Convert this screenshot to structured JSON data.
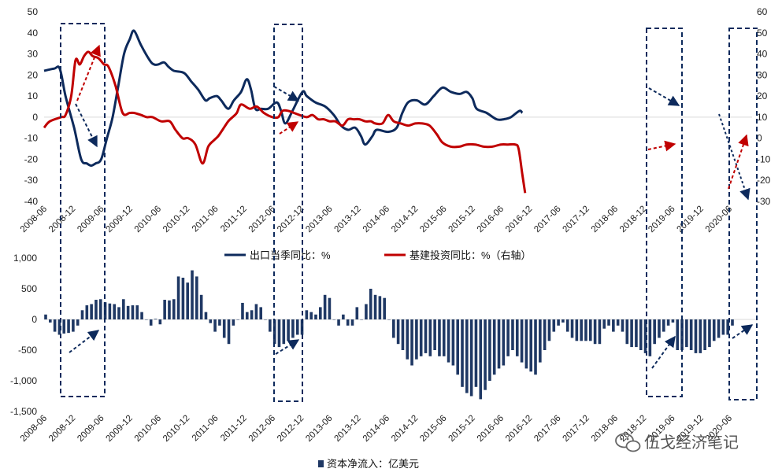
{
  "chart_data": [
    {
      "type": "line",
      "x_labels": [
        "2008-06",
        "2008-12",
        "2009-06",
        "2009-12",
        "2010-06",
        "2010-12",
        "2011-06",
        "2011-12",
        "2012-06",
        "2012-12",
        "2013-06",
        "2013-12",
        "2014-06",
        "2014-12",
        "2015-06",
        "2015-12",
        "2016-06",
        "2016-12",
        "2017-06",
        "2017-12",
        "2018-06",
        "2018-12",
        "2019-06",
        "2019-12",
        "2020-06"
      ],
      "y_left_ticks": [
        "50",
        "40",
        "30",
        "20",
        "10",
        "0",
        "-10",
        "-20",
        "-30",
        "-40"
      ],
      "y_right_ticks": [
        "60",
        "50",
        "40",
        "30",
        "20",
        "10",
        "0",
        "-10",
        "-20",
        "-30"
      ],
      "ylim_left": [
        -40,
        50
      ],
      "ylim_right": [
        -30,
        60
      ],
      "grid": false,
      "legend_position": "bottom",
      "series": [
        {
          "name": "出口当季同比：%",
          "axis": "left",
          "color": "#0d2a5c",
          "points": [
            [
              0.0,
              22
            ],
            [
              0.35,
              23
            ],
            [
              0.55,
              23
            ],
            [
              0.75,
              10
            ],
            [
              1.05,
              -5
            ],
            [
              1.3,
              -20
            ],
            [
              1.5,
              -22
            ],
            [
              1.65,
              -23
            ],
            [
              1.8,
              -22
            ],
            [
              2.0,
              -20
            ],
            [
              2.2,
              -10
            ],
            [
              2.4,
              0
            ],
            [
              2.6,
              15
            ],
            [
              2.8,
              30
            ],
            [
              3.0,
              37
            ],
            [
              3.15,
              41
            ],
            [
              3.4,
              34
            ],
            [
              3.7,
              27
            ],
            [
              3.85,
              25
            ],
            [
              4.0,
              25
            ],
            [
              4.2,
              26
            ],
            [
              4.35,
              24
            ],
            [
              4.55,
              22
            ],
            [
              4.9,
              21
            ],
            [
              5.15,
              17
            ],
            [
              5.4,
              13
            ],
            [
              5.65,
              8
            ],
            [
              5.8,
              9
            ],
            [
              6.05,
              10
            ],
            [
              6.2,
              8
            ],
            [
              6.45,
              4
            ],
            [
              6.65,
              8
            ],
            [
              6.9,
              12
            ],
            [
              7.1,
              18
            ],
            [
              7.25,
              13
            ],
            [
              7.4,
              4
            ],
            [
              7.6,
              4
            ],
            [
              7.85,
              4
            ],
            [
              8.15,
              7
            ],
            [
              8.3,
              3
            ],
            [
              8.45,
              -3
            ],
            [
              8.7,
              3
            ],
            [
              9.05,
              12
            ],
            [
              9.2,
              10
            ],
            [
              9.5,
              7
            ],
            [
              9.85,
              5
            ],
            [
              10.15,
              1
            ],
            [
              10.4,
              -4
            ],
            [
              10.65,
              -6
            ],
            [
              10.9,
              -5
            ],
            [
              11.1,
              -9
            ],
            [
              11.25,
              -13
            ],
            [
              11.5,
              -9
            ],
            [
              11.65,
              -6
            ],
            [
              12.05,
              -7
            ],
            [
              12.35,
              -5
            ],
            [
              12.55,
              2
            ],
            [
              12.75,
              7
            ],
            [
              13.05,
              8
            ],
            [
              13.35,
              6
            ],
            [
              13.65,
              10
            ],
            [
              13.95,
              14
            ],
            [
              14.25,
              12
            ],
            [
              14.55,
              11
            ],
            [
              14.8,
              12
            ],
            [
              15.0,
              9
            ],
            [
              15.15,
              4
            ],
            [
              15.5,
              2
            ],
            [
              15.85,
              -1
            ],
            [
              16.1,
              -1
            ],
            [
              16.35,
              0
            ],
            [
              16.65,
              3
            ],
            [
              16.75,
              2
            ]
          ]
        },
        {
          "name": "基建投资同比：%（右轴）",
          "axis": "right",
          "color": "#c00000",
          "points": [
            [
              0.0,
              5
            ],
            [
              0.2,
              8
            ],
            [
              0.6,
              10
            ],
            [
              0.75,
              11
            ],
            [
              0.95,
              20
            ],
            [
              1.1,
              37
            ],
            [
              1.25,
              35
            ],
            [
              1.4,
              39
            ],
            [
              1.55,
              41
            ],
            [
              1.7,
              39
            ],
            [
              1.9,
              38
            ],
            [
              2.1,
              35
            ],
            [
              2.25,
              34
            ],
            [
              2.5,
              25
            ],
            [
              2.75,
              12
            ],
            [
              3.0,
              12
            ],
            [
              3.15,
              12
            ],
            [
              3.4,
              11
            ],
            [
              3.6,
              10
            ],
            [
              3.8,
              10
            ],
            [
              4.1,
              8
            ],
            [
              4.4,
              8
            ],
            [
              4.6,
              4
            ],
            [
              4.85,
              0
            ],
            [
              5.05,
              0
            ],
            [
              5.3,
              -3
            ],
            [
              5.55,
              -12
            ],
            [
              5.75,
              -4
            ],
            [
              5.95,
              -1
            ],
            [
              6.1,
              1
            ],
            [
              6.25,
              4
            ],
            [
              6.45,
              8
            ],
            [
              6.6,
              10
            ],
            [
              6.75,
              12
            ],
            [
              6.9,
              16
            ],
            [
              7.2,
              14
            ],
            [
              7.45,
              15
            ],
            [
              7.7,
              12
            ],
            [
              8.0,
              10
            ],
            [
              8.2,
              10
            ],
            [
              8.35,
              13
            ],
            [
              8.55,
              13
            ],
            [
              8.75,
              12
            ],
            [
              8.95,
              11
            ],
            [
              9.2,
              10
            ],
            [
              9.4,
              11
            ],
            [
              9.6,
              9
            ],
            [
              9.8,
              9
            ],
            [
              10.0,
              8
            ],
            [
              10.2,
              8
            ],
            [
              10.45,
              6
            ],
            [
              10.65,
              9
            ],
            [
              10.85,
              9
            ],
            [
              11.05,
              9
            ],
            [
              11.25,
              8
            ],
            [
              11.45,
              8
            ],
            [
              11.6,
              7
            ],
            [
              11.85,
              7
            ],
            [
              12.05,
              11
            ],
            [
              12.25,
              8
            ],
            [
              12.5,
              7
            ],
            [
              12.75,
              6
            ],
            [
              13.0,
              7
            ],
            [
              13.25,
              7
            ],
            [
              13.5,
              6
            ],
            [
              13.75,
              2
            ],
            [
              13.95,
              -2
            ],
            [
              14.25,
              -4
            ],
            [
              14.55,
              -4
            ],
            [
              14.8,
              -3
            ],
            [
              15.1,
              -3
            ],
            [
              15.4,
              -4
            ],
            [
              15.7,
              -4
            ],
            [
              16.0,
              -3
            ],
            [
              16.25,
              -3
            ],
            [
              16.5,
              -3
            ],
            [
              16.62,
              -5
            ],
            [
              16.75,
              -17
            ],
            [
              16.85,
              -26
            ]
          ]
        }
      ]
    },
    {
      "type": "bar",
      "name": "资本净流入：亿美元",
      "color": "#1f3864",
      "x_labels": [
        "2008-06",
        "2008-12",
        "2009-06",
        "2009-12",
        "2010-06",
        "2010-12",
        "2011-06",
        "2011-12",
        "2012-06",
        "2012-12",
        "2013-06",
        "2013-12",
        "2014-06",
        "2014-12",
        "2015-06",
        "2015-12",
        "2016-06",
        "2016-12",
        "2017-06",
        "2017-12",
        "2018-06",
        "2018-12",
        "2019-06",
        "2019-12",
        "2020-06"
      ],
      "y_ticks": [
        "1,000",
        "500",
        "0",
        "-500",
        "-1,000",
        "-1,500"
      ],
      "ylim": [
        -1500,
        1000
      ],
      "values": [
        80,
        -50,
        -200,
        -250,
        -230,
        -220,
        -200,
        -100,
        150,
        230,
        250,
        320,
        330,
        280,
        260,
        250,
        200,
        330,
        220,
        230,
        230,
        120,
        0,
        -100,
        10,
        -80,
        320,
        310,
        330,
        700,
        680,
        600,
        800,
        700,
        400,
        120,
        -60,
        -200,
        -100,
        -300,
        -400,
        -100,
        0,
        270,
        120,
        150,
        250,
        200,
        0,
        -200,
        -400,
        -450,
        -400,
        -350,
        -300,
        -250,
        -250,
        150,
        120,
        80,
        200,
        400,
        350,
        0,
        -100,
        80,
        -100,
        -100,
        200,
        0,
        250,
        500,
        400,
        380,
        350,
        0,
        -300,
        -400,
        -500,
        -650,
        -750,
        -650,
        -600,
        -550,
        -600,
        -500,
        -600,
        -600,
        -700,
        -750,
        -900,
        -1100,
        -1200,
        -1250,
        -1100,
        -1300,
        -1150,
        -1000,
        -900,
        -800,
        -750,
        -600,
        -500,
        -600,
        -700,
        -800,
        -850,
        -900,
        -700,
        -500,
        -350,
        -200,
        -100,
        -50,
        -200,
        -300,
        -350,
        -350,
        -350,
        -350,
        -400,
        -400,
        -150,
        -100,
        -200,
        -100,
        -200,
        -400,
        -450,
        -450,
        -500,
        -550,
        -600,
        -400,
        -300,
        -200,
        -100,
        -50,
        -500,
        -500,
        -450,
        -500,
        -550,
        -550,
        -500,
        -450,
        -350,
        -300,
        -250,
        -250,
        -100
      ]
    }
  ],
  "legend": {
    "export": "出口当季同比：%",
    "infra": "基建投资同比：%（右轴）",
    "capital": "资本净流入：亿美元"
  },
  "watermark": "伍戈经济笔记",
  "watermark_icon": "wechat-icon"
}
